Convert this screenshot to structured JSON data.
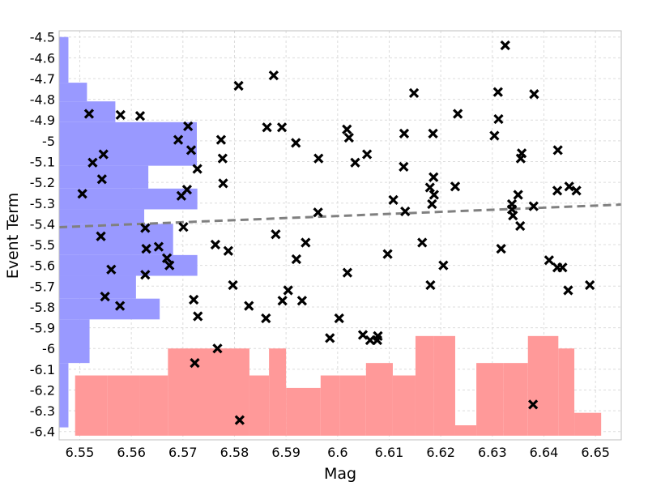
{
  "chart_data": {
    "type": "scatter",
    "xlabel": "Mag",
    "ylabel": "Event Term",
    "xlim": [
      6.546,
      6.655
    ],
    "ylim": [
      -6.44,
      -4.47
    ],
    "x_ticks": [
      "6.55",
      "6.56",
      "6.57",
      "6.58",
      "6.59",
      "6.6",
      "6.61",
      "6.62",
      "6.63",
      "6.64",
      "6.65"
    ],
    "y_ticks": [
      "-4.5",
      "-4.6",
      "-4.7",
      "-4.8",
      "-4.9",
      "-5",
      "-5.1",
      "-5.2",
      "-5.3",
      "-5.4",
      "-5.5",
      "-5.6",
      "-5.7",
      "-5.8",
      "-5.9",
      "-6",
      "-6.1",
      "-6.2",
      "-6.3",
      "-6.4"
    ],
    "grid": true,
    "marker": "x",
    "marker_color": "#000000",
    "points": [
      [
        6.5518,
        -4.87
      ],
      [
        6.5579,
        -4.875
      ],
      [
        6.5617,
        -4.88
      ],
      [
        6.5525,
        -5.105
      ],
      [
        6.5546,
        -5.065
      ],
      [
        6.5543,
        -5.185
      ],
      [
        6.5505,
        -5.255
      ],
      [
        6.5541,
        -5.46
      ],
      [
        6.5561,
        -5.62
      ],
      [
        6.5549,
        -5.75
      ],
      [
        6.5578,
        -5.795
      ],
      [
        6.571,
        -4.93
      ],
      [
        6.5691,
        -4.995
      ],
      [
        6.5716,
        -5.045
      ],
      [
        6.5728,
        -5.135
      ],
      [
        6.5697,
        -5.265
      ],
      [
        6.5708,
        -5.235
      ],
      [
        6.5701,
        -5.415
      ],
      [
        6.5627,
        -5.42
      ],
      [
        6.5629,
        -5.52
      ],
      [
        6.5653,
        -5.51
      ],
      [
        6.5669,
        -5.565
      ],
      [
        6.5674,
        -5.6
      ],
      [
        6.5627,
        -5.645
      ],
      [
        6.5721,
        -5.765
      ],
      [
        6.5729,
        -5.845
      ],
      [
        6.5723,
        -6.07
      ],
      [
        6.5808,
        -4.735
      ],
      [
        6.5876,
        -4.685
      ],
      [
        6.5774,
        -4.995
      ],
      [
        6.5777,
        -5.085
      ],
      [
        6.5778,
        -5.205
      ],
      [
        6.5863,
        -4.935
      ],
      [
        6.5892,
        -4.935
      ],
      [
        6.5919,
        -5.01
      ],
      [
        6.5963,
        -5.085
      ],
      [
        6.5962,
        -5.345
      ],
      [
        6.5763,
        -5.5
      ],
      [
        6.5788,
        -5.53
      ],
      [
        6.588,
        -5.45
      ],
      [
        6.5938,
        -5.49
      ],
      [
        6.592,
        -5.57
      ],
      [
        6.5797,
        -5.695
      ],
      [
        6.5904,
        -5.72
      ],
      [
        6.5893,
        -5.77
      ],
      [
        6.5931,
        -5.77
      ],
      [
        6.5828,
        -5.795
      ],
      [
        6.5861,
        -5.855
      ],
      [
        6.5767,
        -6.0
      ],
      [
        6.581,
        -6.345
      ],
      [
        6.6018,
        -4.945
      ],
      [
        6.6022,
        -4.985
      ],
      [
        6.6034,
        -5.105
      ],
      [
        6.6057,
        -5.065
      ],
      [
        6.6019,
        -5.635
      ],
      [
        6.6003,
        -5.855
      ],
      [
        6.5985,
        -5.95
      ],
      [
        6.6049,
        -5.935
      ],
      [
        6.6063,
        -5.96
      ],
      [
        6.6078,
        -5.94
      ],
      [
        6.6077,
        -5.96
      ],
      [
        6.6097,
        -5.545
      ],
      [
        6.6148,
        -4.77
      ],
      [
        6.6129,
        -4.965
      ],
      [
        6.6128,
        -5.125
      ],
      [
        6.6108,
        -5.285
      ],
      [
        6.6131,
        -5.34
      ],
      [
        6.6164,
        -5.49
      ],
      [
        6.6185,
        -4.965
      ],
      [
        6.6186,
        -5.175
      ],
      [
        6.6179,
        -5.225
      ],
      [
        6.6187,
        -5.26
      ],
      [
        6.6183,
        -5.305
      ],
      [
        6.618,
        -5.695
      ],
      [
        6.6233,
        -4.87
      ],
      [
        6.6228,
        -5.22
      ],
      [
        6.6205,
        -5.6
      ],
      [
        6.6325,
        -4.54
      ],
      [
        6.6311,
        -4.765
      ],
      [
        6.6312,
        -4.895
      ],
      [
        6.6304,
        -4.975
      ],
      [
        6.6381,
        -4.775
      ],
      [
        6.6357,
        -5.06
      ],
      [
        6.6355,
        -5.085
      ],
      [
        6.6427,
        -5.045
      ],
      [
        6.6338,
        -5.305
      ],
      [
        6.635,
        -5.26
      ],
      [
        6.6338,
        -5.33
      ],
      [
        6.634,
        -5.36
      ],
      [
        6.6354,
        -5.41
      ],
      [
        6.638,
        -5.315
      ],
      [
        6.6426,
        -5.24
      ],
      [
        6.6449,
        -5.22
      ],
      [
        6.6463,
        -5.24
      ],
      [
        6.6317,
        -5.52
      ],
      [
        6.641,
        -5.575
      ],
      [
        6.6426,
        -5.61
      ],
      [
        6.6436,
        -5.61
      ],
      [
        6.6447,
        -5.72
      ],
      [
        6.6489,
        -5.695
      ],
      [
        6.6379,
        -6.27
      ]
    ],
    "trend_line": {
      "x": [
        6.546,
        6.655
      ],
      "y": [
        -5.416,
        -5.307
      ],
      "style": "dashed",
      "color": "#808080"
    },
    "x_hist": {
      "color": "#ff9999",
      "base": -6.42,
      "bins": [
        [
          6.5491,
          6.5554,
          -6.13
        ],
        [
          6.5554,
          6.5617,
          -6.13
        ],
        [
          6.5617,
          6.5671,
          -6.13
        ],
        [
          6.5671,
          6.5738,
          -6.0
        ],
        [
          6.5738,
          6.5829,
          -6.0
        ],
        [
          6.5829,
          6.5867,
          -6.13
        ],
        [
          6.5867,
          6.59,
          -6.0
        ],
        [
          6.59,
          6.5967,
          -6.19
        ],
        [
          6.5967,
          6.6004,
          -6.13
        ],
        [
          6.6004,
          6.6055,
          -6.13
        ],
        [
          6.6055,
          6.6107,
          -6.07
        ],
        [
          6.6107,
          6.6151,
          -6.13
        ],
        [
          6.6151,
          6.6187,
          -5.94
        ],
        [
          6.6187,
          6.6228,
          -5.94
        ],
        [
          6.6228,
          6.6269,
          -6.37
        ],
        [
          6.6269,
          6.6322,
          -6.07
        ],
        [
          6.6322,
          6.6369,
          -6.07
        ],
        [
          6.6369,
          6.6428,
          -5.94
        ],
        [
          6.6428,
          6.6459,
          -6.0
        ],
        [
          6.6459,
          6.6511,
          -6.31
        ]
      ]
    },
    "y_hist": {
      "color": "#9999ff",
      "base": 6.546,
      "bins": [
        [
          -4.5,
          -4.72,
          6.5478
        ],
        [
          -4.72,
          -4.81,
          6.5514
        ],
        [
          -4.81,
          -4.91,
          6.5569
        ],
        [
          -4.91,
          -5.12,
          6.5727
        ],
        [
          -5.12,
          -5.23,
          6.5633
        ],
        [
          -5.23,
          -5.33,
          6.5728
        ],
        [
          -5.33,
          -5.4,
          6.5625
        ],
        [
          -5.4,
          -5.55,
          6.5681
        ],
        [
          -5.55,
          -5.65,
          6.5728
        ],
        [
          -5.65,
          -5.76,
          6.5609
        ],
        [
          -5.76,
          -5.86,
          6.5655
        ],
        [
          -5.86,
          -6.07,
          6.5519
        ],
        [
          -6.07,
          -6.38,
          6.5478
        ]
      ]
    }
  }
}
